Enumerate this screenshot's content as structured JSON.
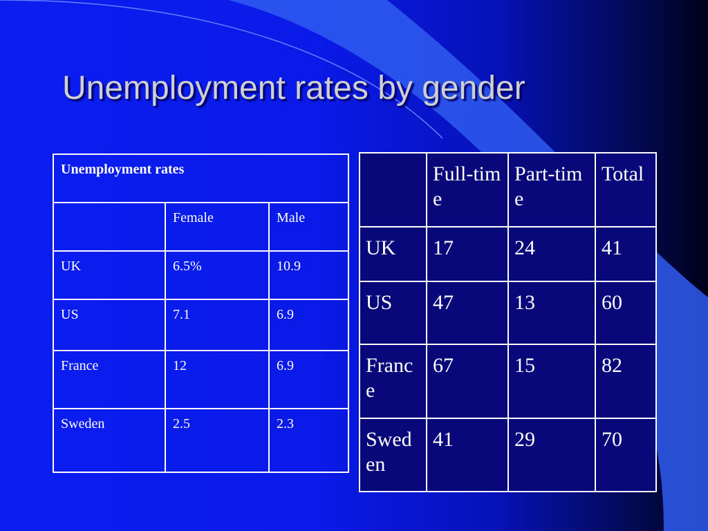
{
  "title": "Unemployment rates by gender",
  "table_left": {
    "caption": "Unemployment rates",
    "header": [
      "",
      "Female",
      "Male"
    ],
    "rows": [
      [
        "UK",
        "6.5%",
        "10.9"
      ],
      [
        "US",
        "7.1",
        "6.9"
      ],
      [
        "France",
        "12",
        "6.9"
      ],
      [
        "Sweden",
        "2.5",
        "2.3"
      ]
    ]
  },
  "table_right": {
    "header": [
      "",
      "Full-time",
      "Part-time",
      "Total"
    ],
    "rows": [
      [
        "UK",
        "17",
        "24",
        "41"
      ],
      [
        "US",
        "47",
        "13",
        "60"
      ],
      [
        "France",
        "67",
        "15",
        "82"
      ],
      [
        "Sweden",
        "41",
        "29",
        "70"
      ]
    ]
  }
}
